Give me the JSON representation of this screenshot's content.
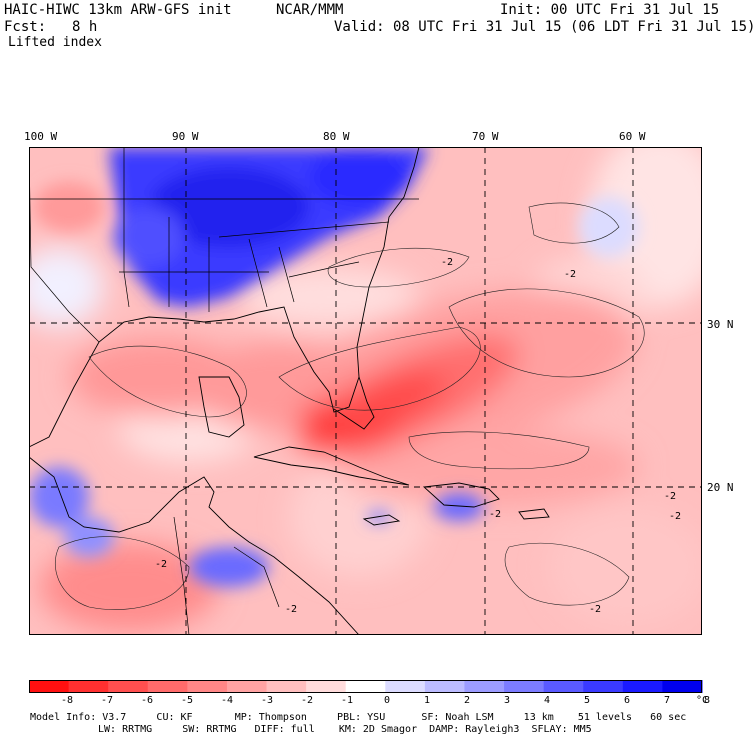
{
  "header": {
    "model_title": "HAIC-HIWC 13km ARW-GFS init",
    "org": "NCAR/MMM",
    "init": "Init: 00 UTC Fri 31 Jul 15",
    "fcst_label": "Fcst:",
    "fcst_value": "8 h",
    "valid": "Valid: 08 UTC Fri 31 Jul 15 (06 LDT Fri 31 Jul 15)",
    "field": "Lifted index"
  },
  "map": {
    "lon_labels": [
      "100 W",
      "90 W",
      "80 W",
      "70 W",
      "60 W"
    ],
    "lat_labels": [
      "30 N",
      "20 N"
    ],
    "contour_labels": [
      "-2",
      "-2",
      "-2",
      "-2",
      "-2",
      "-2",
      "-2",
      "-2"
    ]
  },
  "colorbar": {
    "ticks": [
      "-8",
      "-7",
      "-6",
      "-5",
      "-4",
      "-3",
      "-2",
      "-1",
      "0",
      "1",
      "2",
      "3",
      "4",
      "5",
      "6",
      "7",
      "8"
    ],
    "unit": "°C",
    "colors": [
      "#ff1010",
      "#ff3030",
      "#ff4f4f",
      "#ff6b6b",
      "#ff8787",
      "#ffa3a3",
      "#ffbfbf",
      "#ffdcdc",
      "#ffffff",
      "#dcdcff",
      "#bcbcff",
      "#9c9cff",
      "#7c7cff",
      "#5a5aff",
      "#3a3aff",
      "#1a1aff",
      "#0000ee"
    ]
  },
  "footer": {
    "line1": "Model Info: V3.7     CU: KF       MP: Thompson     PBL: YSU      SF: Noah LSM     13 km    51 levels   60 sec",
    "line2": "LW: RRTMG     SW: RRTMG   DIFF: full    KM: 2D Smagor  DAMP: Rayleigh3  SFLAY: MM5"
  }
}
